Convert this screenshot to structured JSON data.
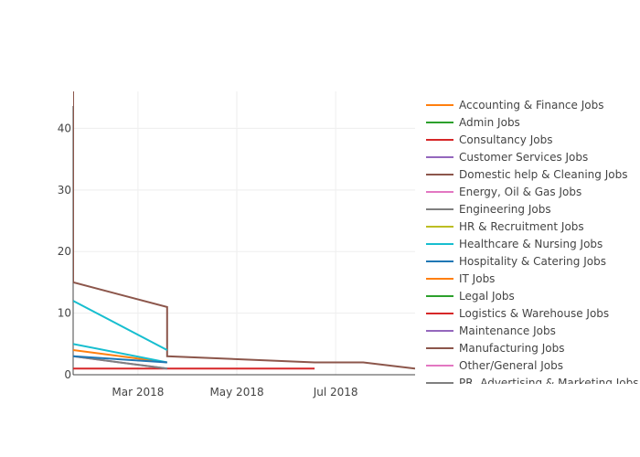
{
  "chart_data": {
    "type": "line",
    "title": "",
    "xlabel": "",
    "ylabel": "",
    "x_range": [
      "2018-01-20",
      "2018-08-19"
    ],
    "ylim": [
      0,
      46
    ],
    "grid": true,
    "legend_position": "right",
    "x_ticks": [
      {
        "date": "2018-03-01",
        "label": "Mar 2018"
      },
      {
        "date": "2018-05-01",
        "label": "May 2018"
      },
      {
        "date": "2018-07-01",
        "label": "Jul 2018"
      }
    ],
    "y_ticks": [
      0,
      10,
      20,
      30,
      40
    ],
    "series": [
      {
        "name": "Accounting & Finance Jobs",
        "color": "#ff7f0e",
        "points": [
          [
            "2018-01-20",
            4
          ],
          [
            "2018-03-19",
            2
          ]
        ]
      },
      {
        "name": "Admin Jobs",
        "color": "#2ca02c",
        "points": []
      },
      {
        "name": "Consultancy Jobs",
        "color": "#d62728",
        "points": [
          [
            "2018-01-20",
            1
          ],
          [
            "2018-06-18",
            1
          ]
        ]
      },
      {
        "name": "Customer Services Jobs",
        "color": "#9467bd",
        "points": [
          [
            "2018-01-20",
            3
          ],
          [
            "2018-03-19",
            1
          ]
        ]
      },
      {
        "name": "Domestic help & Cleaning Jobs",
        "color": "#8c564b",
        "points": [
          [
            "2018-01-20",
            46
          ],
          [
            "2018-01-20",
            15
          ],
          [
            "2018-03-19",
            11
          ],
          [
            "2018-03-19",
            3
          ],
          [
            "2018-06-18",
            2
          ],
          [
            "2018-07-18",
            2
          ],
          [
            "2018-08-19",
            1
          ]
        ]
      },
      {
        "name": "Energy, Oil & Gas Jobs",
        "color": "#e377c2",
        "points": []
      },
      {
        "name": "Engineering Jobs",
        "color": "#7f7f7f",
        "points": [
          [
            "2018-01-20",
            3
          ],
          [
            "2018-03-19",
            1
          ]
        ]
      },
      {
        "name": "HR & Recruitment Jobs",
        "color": "#bcbd22",
        "points": []
      },
      {
        "name": "Healthcare & Nursing Jobs",
        "color": "#17becf",
        "points": [
          [
            "2018-01-20",
            12
          ],
          [
            "2018-03-19",
            4
          ],
          [
            "2018-01-20",
            5
          ],
          [
            "2018-03-19",
            2
          ]
        ]
      },
      {
        "name": "Hospitality & Catering Jobs",
        "color": "#1f77b4",
        "points": [
          [
            "2018-01-20",
            3
          ],
          [
            "2018-03-19",
            2
          ]
        ]
      },
      {
        "name": "IT Jobs",
        "color": "#ff7f0e",
        "points": []
      },
      {
        "name": "Legal Jobs",
        "color": "#2ca02c",
        "points": []
      },
      {
        "name": "Logistics & Warehouse Jobs",
        "color": "#d62728",
        "points": []
      },
      {
        "name": "Maintenance Jobs",
        "color": "#9467bd",
        "points": []
      },
      {
        "name": "Manufacturing Jobs",
        "color": "#8c564b",
        "points": []
      },
      {
        "name": "Other/General Jobs",
        "color": "#e377c2",
        "points": []
      },
      {
        "name": "PR, Advertising & Marketing Jobs",
        "color": "#7f7f7f",
        "points": []
      }
    ]
  }
}
